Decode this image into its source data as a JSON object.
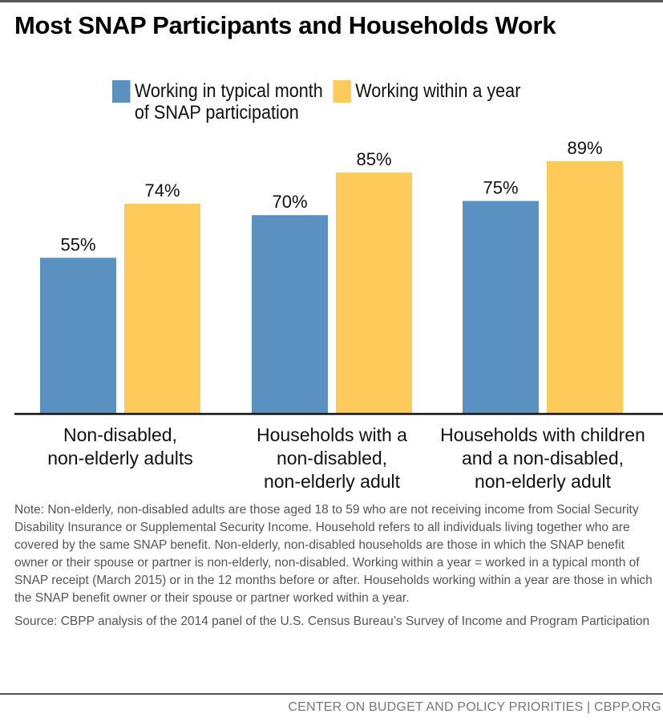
{
  "title": "Most SNAP Participants and Households Work",
  "colors": {
    "series1": "#5A91C0",
    "series2": "#FECB5A",
    "axis": "#111111"
  },
  "chart_data": {
    "type": "bar",
    "title": "Most SNAP Participants and Households Work",
    "categories": [
      [
        "Non-disabled,",
        "non-elderly adults"
      ],
      [
        "Households with a",
        "non-disabled,",
        "non-elderly adult"
      ],
      [
        "Households with children",
        "and a non-disabled,",
        "non-elderly adult"
      ]
    ],
    "series": [
      {
        "name": "Working in typical month of SNAP participation",
        "legend_lines": [
          "Working in typical month",
          "of SNAP participation"
        ],
        "values": [
          55,
          70,
          75
        ],
        "labels": [
          "55%",
          "70%",
          "75%"
        ]
      },
      {
        "name": "Working within a year",
        "legend_lines": [
          "Working within a year"
        ],
        "values": [
          74,
          85,
          89
        ],
        "labels": [
          "74%",
          "85%",
          "89%"
        ]
      }
    ],
    "xlabel": "",
    "ylabel": "",
    "ylim": [
      0,
      100
    ],
    "grid": false,
    "legend_position": "top-center"
  },
  "note": "Note: Non-elderly, non-disabled adults are those aged 18 to 59 who are not receiving income from Social Security Disability Insurance or Supplemental Security Income. Household refers to all individuals living together who are covered by the same SNAP benefit. Non-elderly, non-disabled households are those in which the SNAP benefit owner or their spouse or partner is non-elderly, non-disabled. Working within a year = worked in a typical month of SNAP receipt (March 2015) or in the 12 months before or after. Households working within a year are those in which the SNAP benefit owner or their spouse or partner worked within a year.",
  "source": "Source: CBPP analysis of the 2014 panel of the U.S. Census Bureau’s Survey of Income and Program Participation",
  "footer": "CENTER ON BUDGET AND POLICY PRIORITIES | CBPP.ORG"
}
